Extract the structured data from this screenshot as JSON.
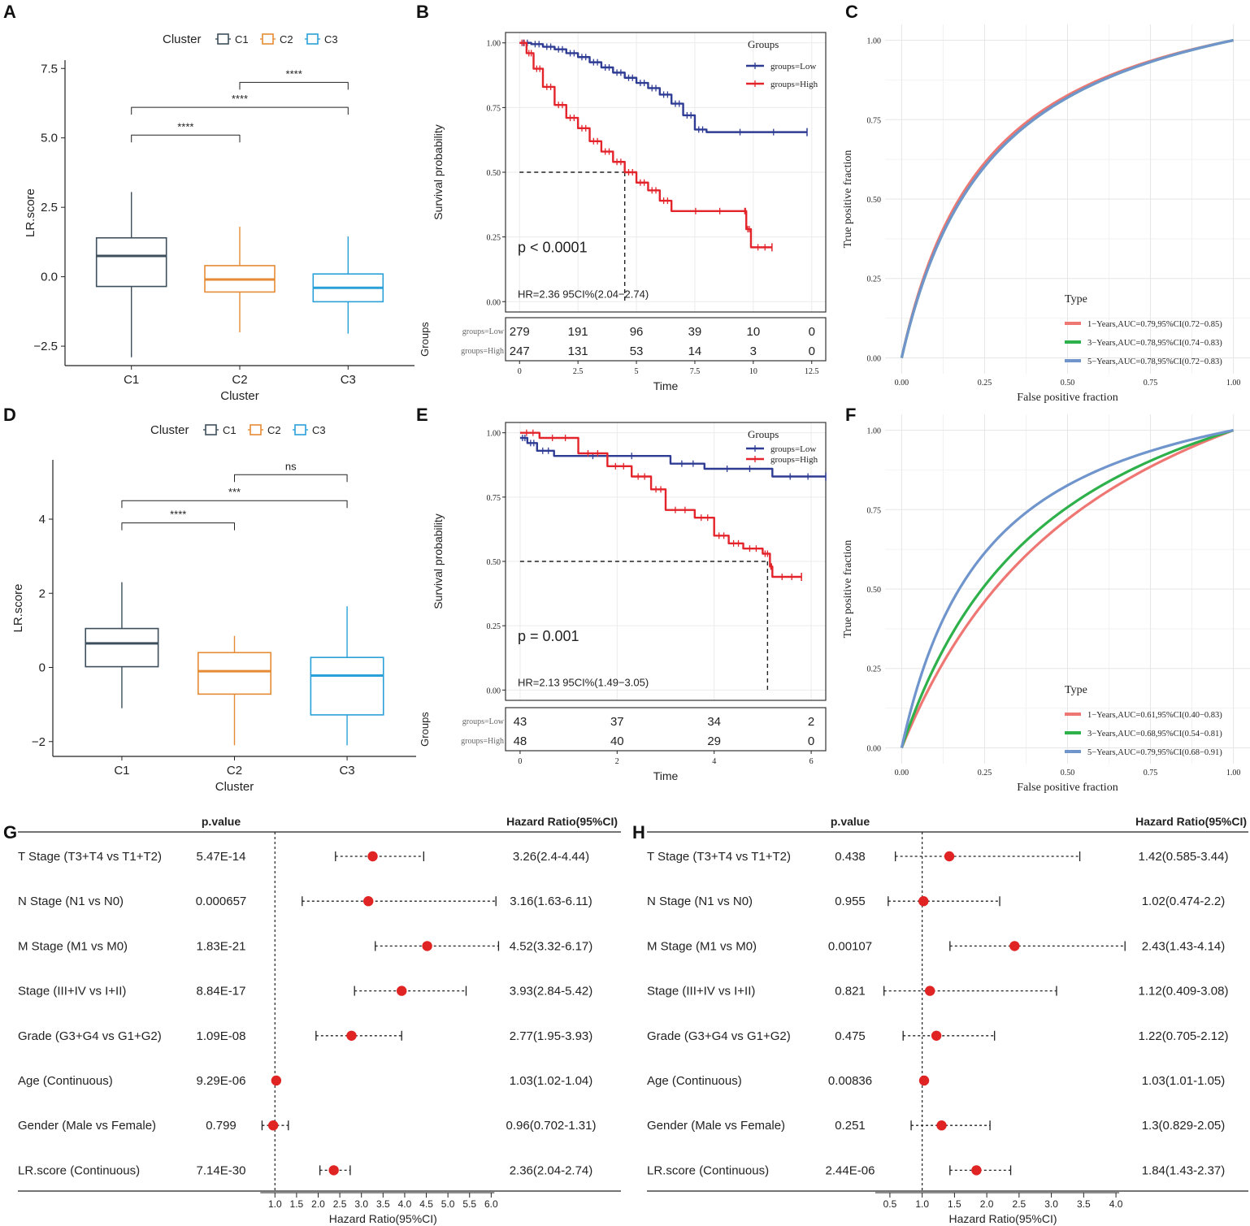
{
  "panel_letters": [
    "A",
    "B",
    "C",
    "D",
    "E",
    "F",
    "G",
    "H"
  ],
  "colors": {
    "c1": "#3d4f5c",
    "c2": "#e58b35",
    "c3": "#2aa0d8",
    "low": "#2e3c94",
    "high": "#e3242b",
    "roc1": "#ef7773",
    "roc3": "#2eb04a",
    "roc5": "#6f95cc",
    "dot": "#e02424"
  },
  "chart_data": [
    {
      "id": "A",
      "type": "boxplot",
      "legend_title": "Cluster",
      "legend_labels": [
        "C1",
        "C2",
        "C3"
      ],
      "xlabel": "Cluster",
      "ylabel": "LR.score",
      "categories": [
        "C1",
        "C2",
        "C3"
      ],
      "ylim": [
        -3.2,
        7.8
      ],
      "yticks": [
        -2.5,
        0.0,
        2.5,
        5.0,
        7.5
      ],
      "ytick_labels": [
        "−2.5",
        "0.0",
        "2.5",
        "5.0",
        "7.5"
      ],
      "boxes": [
        {
          "name": "C1",
          "min": -2.9,
          "q1": -0.35,
          "median": 0.75,
          "q3": 1.4,
          "max": 3.05
        },
        {
          "name": "C2",
          "min": -2.0,
          "q1": -0.55,
          "median": -0.1,
          "q3": 0.4,
          "max": 1.8
        },
        {
          "name": "C3",
          "min": -2.05,
          "q1": -0.9,
          "median": -0.4,
          "q3": 0.1,
          "max": 1.45
        }
      ],
      "comparisons": [
        {
          "from": "C1",
          "to": "C2",
          "y": 5.1,
          "label": "****"
        },
        {
          "from": "C1",
          "to": "C3",
          "y": 6.1,
          "label": "****"
        },
        {
          "from": "C2",
          "to": "C3",
          "y": 7.0,
          "label": "****"
        }
      ]
    },
    {
      "id": "D",
      "type": "boxplot",
      "legend_title": "Cluster",
      "legend_labels": [
        "C1",
        "C2",
        "C3"
      ],
      "xlabel": "Cluster",
      "ylabel": "LR.score",
      "categories": [
        "C1",
        "C2",
        "C3"
      ],
      "ylim": [
        -2.4,
        5.6
      ],
      "yticks": [
        -2,
        0,
        2,
        4
      ],
      "ytick_labels": [
        "−2",
        "0",
        "2",
        "4"
      ],
      "boxes": [
        {
          "name": "C1",
          "min": -1.1,
          "q1": 0.02,
          "median": 0.65,
          "q3": 1.05,
          "max": 2.3
        },
        {
          "name": "C2",
          "min": -2.1,
          "q1": -0.72,
          "median": -0.1,
          "q3": 0.4,
          "max": 0.85
        },
        {
          "name": "C3",
          "min": -2.1,
          "q1": -1.28,
          "median": -0.22,
          "q3": 0.27,
          "max": 1.65
        }
      ],
      "comparisons": [
        {
          "from": "C1",
          "to": "C2",
          "y": 3.9,
          "label": "****"
        },
        {
          "from": "C1",
          "to": "C3",
          "y": 4.5,
          "label": "***"
        },
        {
          "from": "C2",
          "to": "C3",
          "y": 5.2,
          "label": "ns"
        }
      ]
    },
    {
      "id": "B",
      "type": "kaplan-meier",
      "ylabel": "Survival probability",
      "xlabel": "Time",
      "xlim": [
        -0.6,
        13.1
      ],
      "ylim": [
        -0.04,
        1.04
      ],
      "xticks": [
        0,
        2.5,
        5,
        7.5,
        10,
        12.5
      ],
      "xtick_labels": [
        "0",
        "2.5",
        "5",
        "7.5",
        "10",
        "12.5"
      ],
      "yticks": [
        0,
        0.25,
        0.5,
        0.75,
        1
      ],
      "ytick_labels": [
        "0.00",
        "0.25",
        "0.50",
        "0.75",
        "1.00"
      ],
      "legend_title": "Groups",
      "legend_labels": [
        "groups=Low",
        "groups=High"
      ],
      "pvalue": "p < 0.0001",
      "hr_text": "HR=2.36 95CI%(2.04−2.74)",
      "median_x": 4.5,
      "series": [
        {
          "name": "groups=Low",
          "points": [
            [
              0,
              1
            ],
            [
              0.5,
              0.995
            ],
            [
              1,
              0.985
            ],
            [
              1.5,
              0.975
            ],
            [
              2,
              0.96
            ],
            [
              2.5,
              0.945
            ],
            [
              3,
              0.925
            ],
            [
              3.5,
              0.905
            ],
            [
              4,
              0.885
            ],
            [
              4.5,
              0.865
            ],
            [
              5,
              0.845
            ],
            [
              5.5,
              0.825
            ],
            [
              6,
              0.8
            ],
            [
              6.5,
              0.765
            ],
            [
              7,
              0.72
            ],
            [
              7.5,
              0.665
            ],
            [
              8,
              0.655
            ],
            [
              12.3,
              0.655
            ]
          ]
        },
        {
          "name": "groups=High",
          "points": [
            [
              0,
              1
            ],
            [
              0.3,
              0.96
            ],
            [
              0.6,
              0.9
            ],
            [
              1,
              0.83
            ],
            [
              1.5,
              0.76
            ],
            [
              2,
              0.71
            ],
            [
              2.5,
              0.67
            ],
            [
              3,
              0.62
            ],
            [
              3.5,
              0.58
            ],
            [
              4,
              0.54
            ],
            [
              4.5,
              0.5
            ],
            [
              5,
              0.46
            ],
            [
              5.5,
              0.43
            ],
            [
              6,
              0.39
            ],
            [
              6.5,
              0.35
            ],
            [
              9.6,
              0.35
            ],
            [
              9.7,
              0.28
            ],
            [
              9.9,
              0.21
            ],
            [
              10.8,
              0.21
            ]
          ]
        }
      ],
      "risk_table": {
        "row_labels": [
          "groups=Low",
          "groups=High"
        ],
        "times": [
          0,
          2.5,
          5,
          7.5,
          10,
          12.5
        ],
        "rows": [
          [
            "279",
            "191",
            "96",
            "39",
            "10",
            "0"
          ],
          [
            "247",
            "131",
            "53",
            "14",
            "3",
            "0"
          ]
        ]
      },
      "risk_ylabel": "Groups"
    },
    {
      "id": "E",
      "type": "kaplan-meier",
      "ylabel": "Survival probability",
      "xlabel": "Time",
      "xlim": [
        -0.3,
        6.3
      ],
      "ylim": [
        -0.04,
        1.04
      ],
      "xticks": [
        0,
        2,
        4,
        6
      ],
      "xtick_labels": [
        "0",
        "2",
        "4",
        "6"
      ],
      "yticks": [
        0,
        0.25,
        0.5,
        0.75,
        1
      ],
      "ytick_labels": [
        "0.00",
        "0.25",
        "0.50",
        "0.75",
        "1.00"
      ],
      "legend_title": "Groups",
      "legend_labels": [
        "groups=Low",
        "groups=High"
      ],
      "pvalue": "p = 0.001",
      "hr_text": "HR=2.13 95CI%(1.49−3.05)",
      "median_x": 5.1,
      "series": [
        {
          "name": "groups=Low",
          "points": [
            [
              0,
              0.98
            ],
            [
              0.15,
              0.96
            ],
            [
              0.35,
              0.93
            ],
            [
              0.7,
              0.91
            ],
            [
              3.1,
              0.88
            ],
            [
              3.8,
              0.86
            ],
            [
              5.2,
              0.83
            ],
            [
              6.3,
              0.83
            ]
          ]
        },
        {
          "name": "groups=High",
          "points": [
            [
              0,
              1
            ],
            [
              0.4,
              0.98
            ],
            [
              1.2,
              0.92
            ],
            [
              1.8,
              0.87
            ],
            [
              2.3,
              0.83
            ],
            [
              2.7,
              0.78
            ],
            [
              3.0,
              0.7
            ],
            [
              3.6,
              0.67
            ],
            [
              4.0,
              0.6
            ],
            [
              4.3,
              0.57
            ],
            [
              4.6,
              0.55
            ],
            [
              5.0,
              0.53
            ],
            [
              5.15,
              0.48
            ],
            [
              5.2,
              0.44
            ],
            [
              5.8,
              0.44
            ]
          ]
        }
      ],
      "risk_table": {
        "row_labels": [
          "groups=Low",
          "groups=High"
        ],
        "times": [
          0,
          2,
          4,
          6
        ],
        "rows": [
          [
            "43",
            "37",
            "34",
            "2"
          ],
          [
            "48",
            "40",
            "29",
            "0"
          ]
        ]
      },
      "risk_ylabel": "Groups"
    },
    {
      "id": "C",
      "type": "roc",
      "xlabel": "False positive fraction",
      "ylabel": "True positive fraction",
      "ticks": [
        0,
        0.25,
        0.5,
        0.75,
        1
      ],
      "tick_labels": [
        "0.00",
        "0.25",
        "0.50",
        "0.75",
        "1.00"
      ],
      "legend_title": "Type",
      "series": [
        {
          "name": "1−Years,AUC=0.79,95%CI(0.72−0.85)",
          "auc": 0.79
        },
        {
          "name": "3−Years,AUC=0.78,95%CI(0.74−0.83)",
          "auc": 0.78
        },
        {
          "name": "5−Years,AUC=0.78,95%CI(0.72−0.83)",
          "auc": 0.78
        }
      ]
    },
    {
      "id": "F",
      "type": "roc",
      "xlabel": "False positive fraction",
      "ylabel": "True positive fraction",
      "ticks": [
        0,
        0.25,
        0.5,
        0.75,
        1
      ],
      "tick_labels": [
        "0.00",
        "0.25",
        "0.50",
        "0.75",
        "1.00"
      ],
      "legend_title": "Type",
      "series": [
        {
          "name": "1−Years,AUC=0.61,95%CI(0.40−0.83)",
          "auc": 0.61
        },
        {
          "name": "3−Years,AUC=0.68,95%CI(0.54−0.81)",
          "auc": 0.68
        },
        {
          "name": "5−Years,AUC=0.79,95%CI(0.68−0.91)",
          "auc": 0.79
        }
      ]
    },
    {
      "id": "G",
      "type": "forest",
      "header_p": "p.value",
      "header_hr": "Hazard Ratio(95%CI)",
      "xlabel": "Hazard Ratio(95%CI)",
      "xlim": [
        0.6,
        6.2
      ],
      "xticks": [
        1.0,
        1.5,
        2.0,
        2.5,
        3.0,
        3.5,
        4.0,
        4.5,
        5.0,
        5.5,
        6.0
      ],
      "xtick_labels": [
        "1.0",
        "1.5",
        "2.0",
        "2.5",
        "3.0",
        "3.5",
        "4.0",
        "4.5",
        "5.0",
        "5.5",
        "6.0"
      ],
      "rows": [
        {
          "label": "T Stage (T3+T4 vs T1+T2)",
          "p": "5.47E-14",
          "hr": 3.26,
          "lo": 2.4,
          "hi": 4.44,
          "text": "3.26(2.4-4.44)"
        },
        {
          "label": "N Stage (N1 vs N0)",
          "p": "0.000657",
          "hr": 3.16,
          "lo": 1.63,
          "hi": 6.11,
          "text": "3.16(1.63-6.11)"
        },
        {
          "label": "M Stage (M1 vs M0)",
          "p": "1.83E-21",
          "hr": 4.52,
          "lo": 3.32,
          "hi": 6.17,
          "text": "4.52(3.32-6.17)"
        },
        {
          "label": "Stage (III+IV vs I+II)",
          "p": "8.84E-17",
          "hr": 3.93,
          "lo": 2.84,
          "hi": 5.42,
          "text": "3.93(2.84-5.42)"
        },
        {
          "label": "Grade (G3+G4 vs G1+G2)",
          "p": "1.09E-08",
          "hr": 2.77,
          "lo": 1.95,
          "hi": 3.93,
          "text": "2.77(1.95-3.93)"
        },
        {
          "label": "Age (Continuous)",
          "p": "9.29E-06",
          "hr": 1.03,
          "lo": 1.02,
          "hi": 1.04,
          "text": "1.03(1.02-1.04)"
        },
        {
          "label": "Gender (Male vs Female)",
          "p": "0.799",
          "hr": 0.96,
          "lo": 0.702,
          "hi": 1.31,
          "text": "0.96(0.702-1.31)"
        },
        {
          "label": "LR.score (Continuous)",
          "p": "7.14E-30",
          "hr": 2.36,
          "lo": 2.04,
          "hi": 2.74,
          "text": "2.36(2.04-2.74)"
        }
      ]
    },
    {
      "id": "H",
      "type": "forest",
      "header_p": "p.value",
      "header_hr": "Hazard Ratio(95%CI)",
      "xlabel": "Hazard Ratio(95%CI)",
      "xlim": [
        0.35,
        4.15
      ],
      "xticks": [
        0.5,
        1.0,
        1.5,
        2.0,
        2.5,
        3.0,
        3.5,
        4.0
      ],
      "xtick_labels": [
        "0.5",
        "1.0",
        "1.5",
        "2.0",
        "2.5",
        "3.0",
        "3.5",
        "4.0"
      ],
      "rows": [
        {
          "label": "T Stage (T3+T4 vs T1+T2)",
          "p": "0.438",
          "hr": 1.42,
          "lo": 0.585,
          "hi": 3.44,
          "text": "1.42(0.585-3.44)"
        },
        {
          "label": "N Stage (N1 vs N0)",
          "p": "0.955",
          "hr": 1.02,
          "lo": 0.474,
          "hi": 2.2,
          "text": "1.02(0.474-2.2)"
        },
        {
          "label": "M Stage (M1 vs M0)",
          "p": "0.00107",
          "hr": 2.43,
          "lo": 1.43,
          "hi": 4.14,
          "text": "2.43(1.43-4.14)"
        },
        {
          "label": "Stage (III+IV vs I+II)",
          "p": "0.821",
          "hr": 1.12,
          "lo": 0.409,
          "hi": 3.08,
          "text": "1.12(0.409-3.08)"
        },
        {
          "label": "Grade (G3+G4 vs G1+G2)",
          "p": "0.475",
          "hr": 1.22,
          "lo": 0.705,
          "hi": 2.12,
          "text": "1.22(0.705-2.12)"
        },
        {
          "label": "Age (Continuous)",
          "p": "0.00836",
          "hr": 1.03,
          "lo": 1.01,
          "hi": 1.05,
          "text": "1.03(1.01-1.05)"
        },
        {
          "label": "Gender (Male vs Female)",
          "p": "0.251",
          "hr": 1.3,
          "lo": 0.829,
          "hi": 2.05,
          "text": "1.3(0.829-2.05)"
        },
        {
          "label": "LR.score (Continuous)",
          "p": "2.44E-06",
          "hr": 1.84,
          "lo": 1.43,
          "hi": 2.37,
          "text": "1.84(1.43-2.37)"
        }
      ]
    }
  ]
}
